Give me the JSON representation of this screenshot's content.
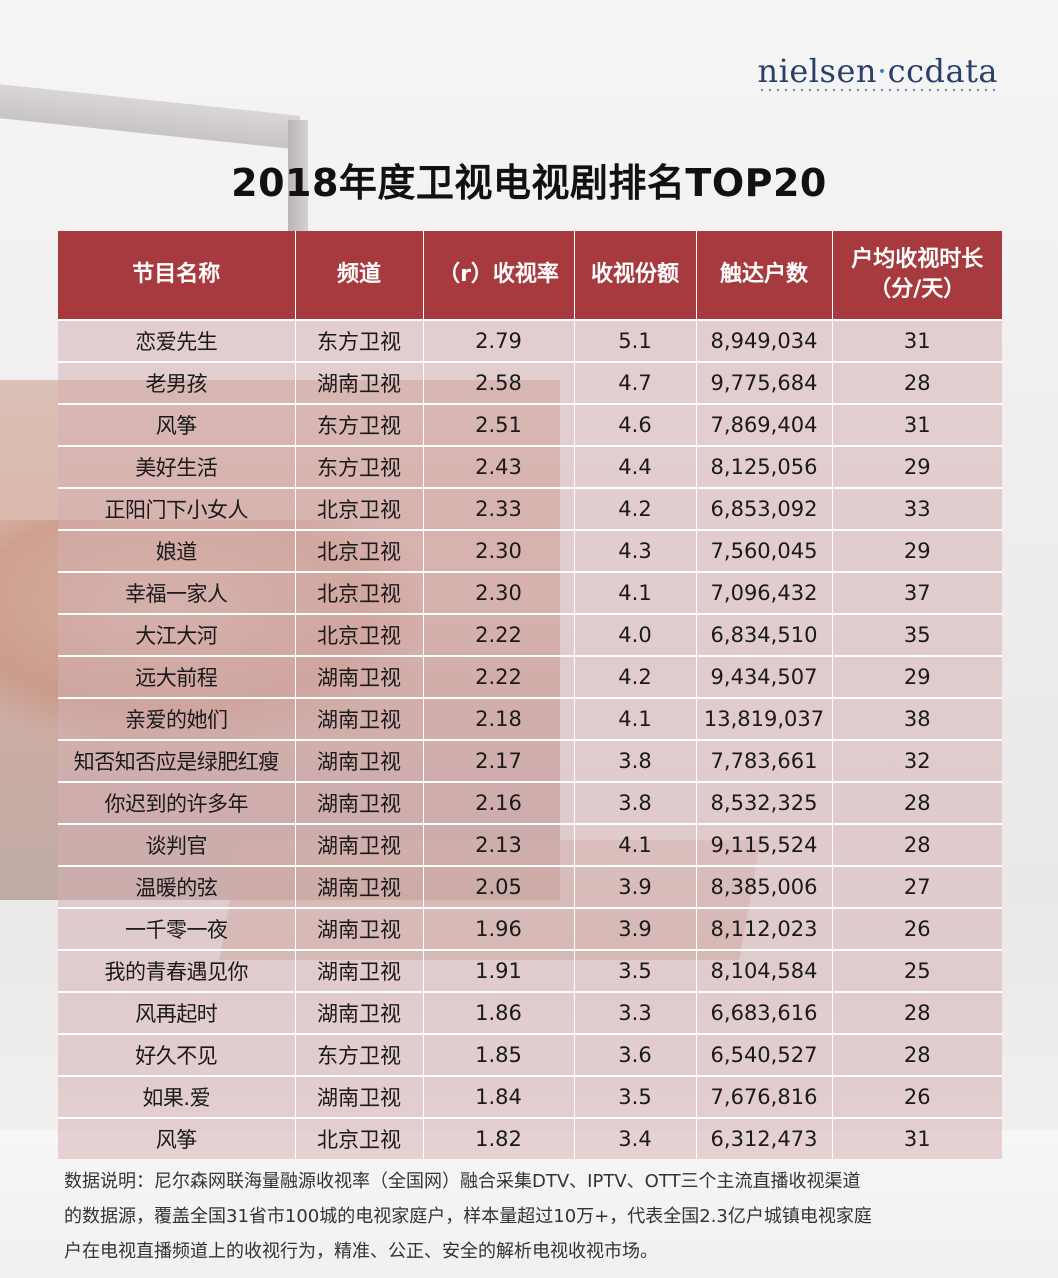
{
  "brand": {
    "logo_prefix": "nielsen",
    "logo_dot": "·",
    "logo_suffix": "ccdata"
  },
  "title": "2018年度卫视电视剧排名TOP20",
  "table": {
    "headers": [
      {
        "line1": "节目名称",
        "line2": ""
      },
      {
        "line1": "频道",
        "line2": ""
      },
      {
        "line1": "（r）收视率",
        "line2": ""
      },
      {
        "line1": "收视份额",
        "line2": ""
      },
      {
        "line1": "触达户数",
        "line2": ""
      },
      {
        "line1": "户均收视时长",
        "line2": "（分/天）"
      }
    ],
    "rows": [
      [
        "恋爱先生",
        "东方卫视",
        "2.79",
        "5.1",
        "8,949,034",
        "31"
      ],
      [
        "老男孩",
        "湖南卫视",
        "2.58",
        "4.7",
        "9,775,684",
        "28"
      ],
      [
        "风筝",
        "东方卫视",
        "2.51",
        "4.6",
        "7,869,404",
        "31"
      ],
      [
        "美好生活",
        "东方卫视",
        "2.43",
        "4.4",
        "8,125,056",
        "29"
      ],
      [
        "正阳门下小女人",
        "北京卫视",
        "2.33",
        "4.2",
        "6,853,092",
        "33"
      ],
      [
        "娘道",
        "北京卫视",
        "2.30",
        "4.3",
        "7,560,045",
        "29"
      ],
      [
        "幸福一家人",
        "北京卫视",
        "2.30",
        "4.1",
        "7,096,432",
        "37"
      ],
      [
        "大江大河",
        "北京卫视",
        "2.22",
        "4.0",
        "6,834,510",
        "35"
      ],
      [
        "远大前程",
        "湖南卫视",
        "2.22",
        "4.2",
        "9,434,507",
        "29"
      ],
      [
        "亲爱的她们",
        "湖南卫视",
        "2.18",
        "4.1",
        "13,819,037",
        "38"
      ],
      [
        "知否知否应是绿肥红瘦",
        "湖南卫视",
        "2.17",
        "3.8",
        "7,783,661",
        "32"
      ],
      [
        "你迟到的许多年",
        "湖南卫视",
        "2.16",
        "3.8",
        "8,532,325",
        "28"
      ],
      [
        "谈判官",
        "湖南卫视",
        "2.13",
        "4.1",
        "9,115,524",
        "28"
      ],
      [
        "温暖的弦",
        "湖南卫视",
        "2.05",
        "3.9",
        "8,385,006",
        "27"
      ],
      [
        "一千零一夜",
        "湖南卫视",
        "1.96",
        "3.9",
        "8,112,023",
        "26"
      ],
      [
        "我的青春遇见你",
        "湖南卫视",
        "1.91",
        "3.5",
        "8,104,584",
        "25"
      ],
      [
        "风再起时",
        "湖南卫视",
        "1.86",
        "3.3",
        "6,683,616",
        "28"
      ],
      [
        "好久不见",
        "东方卫视",
        "1.85",
        "3.6",
        "6,540,527",
        "28"
      ],
      [
        "如果.爱",
        "湖南卫视",
        "1.84",
        "3.5",
        "7,676,816",
        "26"
      ],
      [
        "风筝",
        "北京卫视",
        "1.82",
        "3.4",
        "6,312,473",
        "31"
      ]
    ]
  },
  "note": [
    "数据说明：尼尔森网联海量融源收视率（全国网）融合采集DTV、IPTV、OTT三个主流直播收视渠道",
    "的数据源，覆盖全国31省市100城的电视家庭户，样本量超过10万+，代表全国2.3亿户城镇电视家庭",
    "户在电视直播频道上的收视行为，精准、公正、安全的解析电视收视市场。"
  ],
  "colors": {
    "header_bg": "#a63a3f",
    "row_bg": "#dcb9bc",
    "title": "#111111",
    "logo": "#2a3f6a"
  }
}
